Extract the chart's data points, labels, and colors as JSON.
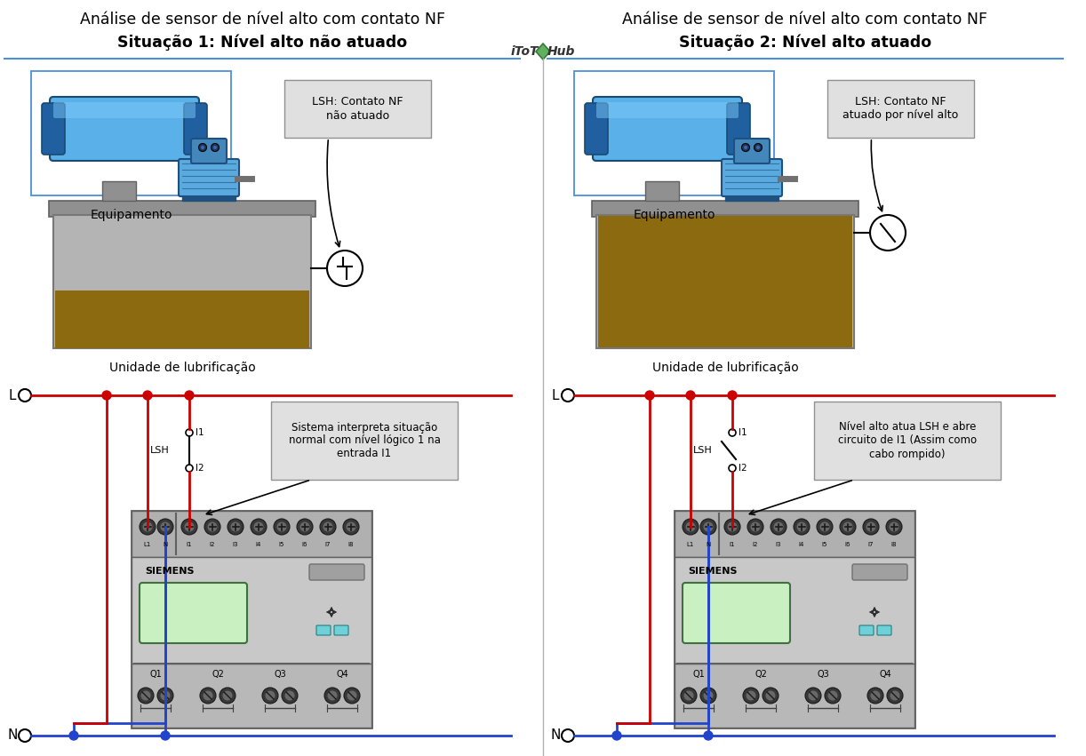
{
  "title_line1": "Análise de sensor de nível alto com contato NF",
  "title1_line2": "Situação 1: Nível alto não atuado",
  "title2_line2": "Situação 2: Nível alto atuado",
  "callout1_top": "LSH: Contato NF\nnão atuado",
  "callout2_top": "LSH: Contato NF\natuado por nível alto",
  "callout1_bot": "Sistema interpreta situação\nnormal com nível lógico 1 na\nentrada I1",
  "callout2_bot": "Nível alto atua LSH e abre\ncircuito de I1 (Assim como\ncabo rompido)",
  "label_equipamento": "Equipamento",
  "label_unidade": "Unidade de lubrificação",
  "label_L": "L",
  "label_N": "N",
  "label_LSH": "LSH",
  "label_siemens": "SIEMENS",
  "bg_color": "#ffffff",
  "blue_border": "#4a90d9",
  "divider_color": "#4a90d9",
  "tank_gray": "#b4b4b4",
  "tank_edge": "#787878",
  "platform_gray": "#909090",
  "oil_color": "#8b6a10",
  "motor_body": "#5aaae0",
  "motor_dark": "#1e5080",
  "motor_top_blue": "#4488bb",
  "plc_body": "#c0c0c0",
  "plc_top": "#b0b0b0",
  "plc_mid": "#c8c8c8",
  "plc_bot": "#b8b8b8",
  "screen_green": "#c8f0c0",
  "wire_red": "#cc0000",
  "wire_blue": "#2244cc",
  "node_red": "#cc0000",
  "node_blue": "#2244cc",
  "callout_bg": "#e0e0e0",
  "callout_border": "#909090",
  "btn_cyan": "#70d0d8",
  "separator_color": "#787878"
}
